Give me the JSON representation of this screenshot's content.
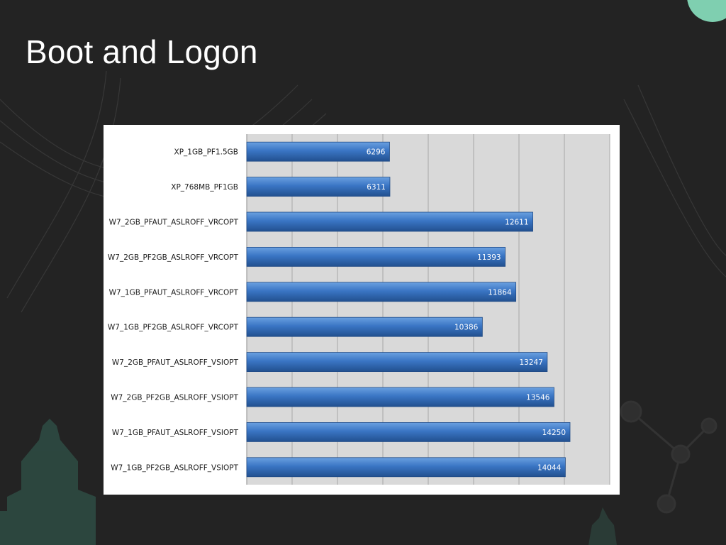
{
  "slide": {
    "title": "Boot and Logon"
  },
  "colors": {
    "background": "#232323",
    "accent": "#7fcfb0",
    "bar": "#3a75c4",
    "plot_area": "#d9d9d9"
  },
  "chart_data": {
    "type": "bar",
    "orientation": "horizontal",
    "title": "",
    "xlabel": "",
    "ylabel": "",
    "categories": [
      "XP_1GB_PF1.5GB",
      "XP_768MB_PF1GB",
      "W7_2GB_PFAUT_ASLROFF_VRCOPT",
      "W7_2GB_PF2GB_ASLROFF_VRCOPT",
      "W7_1GB_PFAUT_ASLROFF_VRCOPT",
      "W7_1GB_PF2GB_ASLROFF_VRCOPT",
      "W7_2GB_PFAUT_ASLROFF_VSIOPT",
      "W7_2GB_PF2GB_ASLROFF_VSIOPT",
      "W7_1GB_PFAUT_ASLROFF_VSIOPT",
      "W7_1GB_PF2GB_ASLROFF_VSIOPT"
    ],
    "values": [
      6296,
      6311,
      12611,
      11393,
      11864,
      10386,
      13247,
      13546,
      14250,
      14044
    ],
    "xlim": [
      0,
      16000
    ],
    "x_gridline_step": 2000,
    "x_tick_labels_shown": false,
    "data_labels": true,
    "grid": true,
    "legend": "none"
  }
}
